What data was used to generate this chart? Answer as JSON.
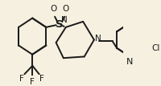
{
  "bg_color": "#f5f0e0",
  "bond_color": "#1a1a1a",
  "atom_color": "#1a1a1a",
  "bond_width": 1.4,
  "font_size": 7.5,
  "figsize": [
    2.0,
    1.07
  ],
  "dpi": 100,
  "xlim": [
    0,
    2.0
  ],
  "ylim": [
    0,
    1.07
  ]
}
